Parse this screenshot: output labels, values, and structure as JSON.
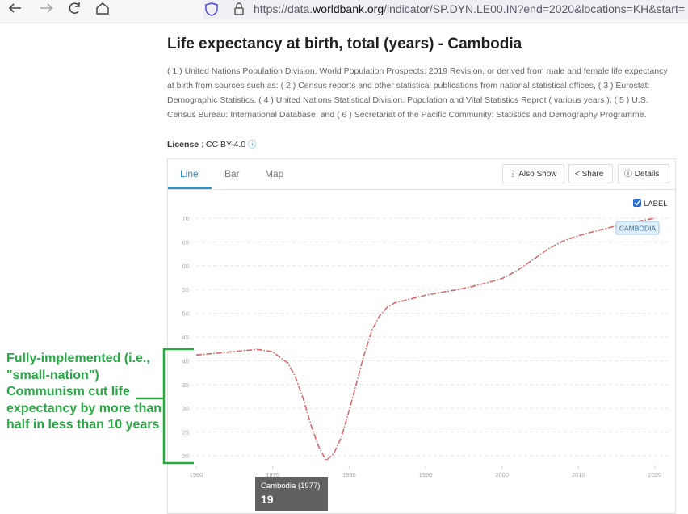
{
  "browser": {
    "url_prefix": "https://data.",
    "url_domain": "worldbank.org",
    "url_path": "/indicator/SP.DYN.LE00.IN?end=2020&locations=KH&start="
  },
  "page": {
    "title": "Life expectancy at birth, total (years) - Cambodia",
    "description": "( 1 ) United Nations Population Division. World Population Prospects: 2019 Revision, or derived from male and female life expectancy at birth from sources such as: ( 2 ) Census reports and other statistical publications from national statistical offices, ( 3 ) Eurostat: Demographic Statistics, ( 4 ) United Nations Statistical Division. Population and Vital Statistics Reprot ( various years ), ( 5 ) U.S. Census Bureau: International Database, and ( 6 ) Secretariat of the Pacific Community: Statistics and Demography Programme.",
    "license_label": "License",
    "license_value": " : CC BY-4.0"
  },
  "tabs": [
    "Line",
    "Bar",
    "Map"
  ],
  "buttons": [
    "Also Show",
    "Share",
    "Details"
  ],
  "chart_data": {
    "type": "line",
    "label_toggle": "LABEL",
    "x": [
      1960,
      1962,
      1964,
      1966,
      1968,
      1970,
      1972,
      1973,
      1974,
      1975,
      1976,
      1977,
      1978,
      1979,
      1980,
      1981,
      1982,
      1983,
      1984,
      1985,
      1986,
      1988,
      1990,
      1992,
      1994,
      1996,
      1998,
      2000,
      2002,
      2004,
      2006,
      2008,
      2010,
      2012,
      2014,
      2016,
      2018,
      2020
    ],
    "series": [
      {
        "name": "CAMBODIA",
        "color": "#d9686b",
        "values": [
          41.2,
          41.5,
          41.8,
          42.1,
          42.4,
          41.9,
          39.5,
          36.5,
          32,
          26.5,
          22,
          19,
          20.5,
          24,
          29.5,
          35.5,
          41.5,
          46.5,
          49.5,
          51.3,
          52.2,
          53,
          53.8,
          54.4,
          54.9,
          55.6,
          56.4,
          57.3,
          59,
          61.2,
          63.5,
          65.2,
          66.3,
          67.2,
          68,
          68.8,
          69.4,
          70
        ]
      }
    ],
    "xlim": [
      1960,
      2020
    ],
    "xticks": [
      1960,
      1970,
      1980,
      1990,
      2000,
      2010,
      2020
    ],
    "ylim": [
      18,
      72
    ],
    "yticks": [
      20,
      25,
      30,
      35,
      40,
      45,
      50,
      55,
      60,
      65,
      70
    ],
    "grid": true
  },
  "tooltip": {
    "title": "Cambodia (1977)",
    "value": 19
  },
  "annotation": "Fully-implemented (i.e., \"small-nation\") Communism cut life expectancy by more than half in less than 10 years"
}
